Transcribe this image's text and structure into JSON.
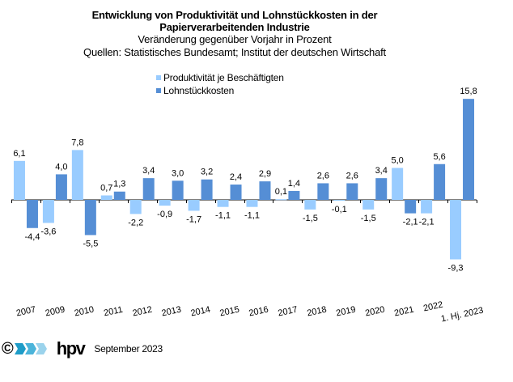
{
  "title_line1": "Entwicklung von Produktivität und Lohnstückkosten  in der",
  "title_line2": "Papierverarbeitenden Industrie",
  "subtitle": "Veränderung  gegenüber  Vorjahr  in Prozent",
  "sources": "Quellen: Statistisches Bundesamt; Institut der deutschen Wirtschaft",
  "colors": {
    "productivity": "#99CCFF",
    "unit_labour_costs": "#558ED5"
  },
  "footer": {
    "copyright_symbol": "©",
    "brand": "hpv",
    "date": "September 2023"
  },
  "chart_data": {
    "type": "bar",
    "title": "Entwicklung von Produktivität und Lohnstückkosten in der Papierverarbeitenden Industrie",
    "subtitle": "Veränderung gegenüber Vorjahr in Prozent",
    "xlabel": "",
    "ylabel": "",
    "ylim": [
      -10,
      16
    ],
    "grid": false,
    "legend_position": "top-center",
    "categories": [
      "2007",
      "2009",
      "2010",
      "2011",
      "2012",
      "2013",
      "2014",
      "2015",
      "2016",
      "2017",
      "2018",
      "2019",
      "2020",
      "2021",
      "2022",
      "1. Hj. 2023"
    ],
    "series": [
      {
        "name": "Produktivität je Beschäftigten",
        "color": "#99CCFF",
        "values": [
          6.1,
          -3.6,
          7.8,
          0.7,
          -2.2,
          -0.9,
          -1.7,
          -1.1,
          -1.1,
          0.1,
          -1.5,
          -0.1,
          -1.5,
          5.0,
          -2.1,
          -9.3
        ],
        "labels": [
          "6,1",
          "-3,6",
          "7,8",
          "0,7",
          "-2,2",
          "-0,9",
          "-1,7",
          "-1,1",
          "-1,1",
          "0,1",
          "-1,5",
          "-0,1",
          "-1,5",
          "5,0",
          "-2,1",
          "-9,3"
        ]
      },
      {
        "name": "Lohnstückkosten",
        "color": "#558ED5",
        "values": [
          -4.4,
          4.0,
          -5.5,
          1.3,
          3.4,
          3.0,
          3.2,
          2.4,
          2.9,
          1.4,
          2.6,
          2.6,
          3.4,
          -2.1,
          5.6,
          15.8
        ],
        "labels": [
          "-4,4",
          "4,0",
          "-5,5",
          "1,3",
          "3,4",
          "3,0",
          "3,2",
          "2,4",
          "2,9",
          "1,4",
          "2,6",
          "2,6",
          "3,4",
          "-2,1",
          "5,6",
          "15,8"
        ]
      }
    ]
  }
}
